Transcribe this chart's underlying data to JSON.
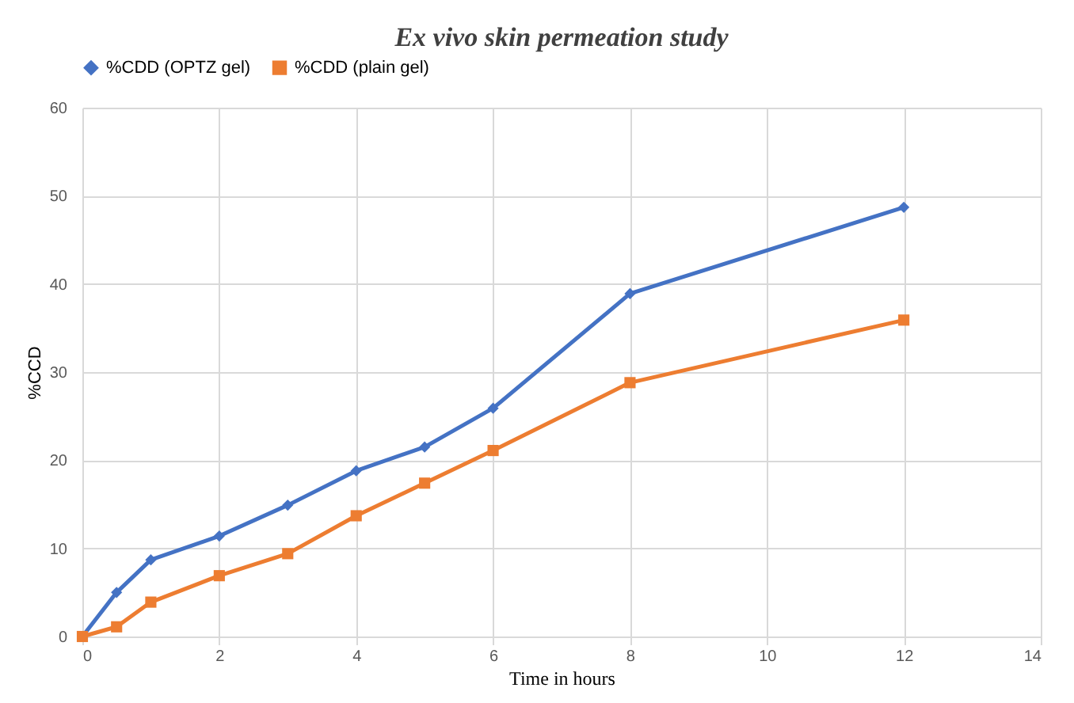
{
  "chart_data": {
    "type": "line",
    "title": "Ex vivo skin permeation study",
    "xlabel": "Time in hours",
    "ylabel": "%CCD",
    "x": [
      0,
      0.5,
      1,
      2,
      3,
      4,
      5,
      6,
      8,
      12
    ],
    "series": [
      {
        "name": "%CDD (OPTZ gel)",
        "color": "#4472c4",
        "marker": "diamond",
        "values": [
          0,
          5.0,
          8.7,
          11.4,
          14.9,
          18.8,
          21.5,
          25.9,
          38.9,
          48.7
        ]
      },
      {
        "name": "%CDD (plain gel)",
        "color": "#ed7d31",
        "marker": "square",
        "values": [
          0,
          1.1,
          3.9,
          6.9,
          9.4,
          13.7,
          17.4,
          21.1,
          28.8,
          35.9
        ]
      }
    ],
    "xlim": [
      0,
      14
    ],
    "xticks": [
      0,
      2,
      4,
      6,
      8,
      10,
      12,
      14
    ],
    "ylim": [
      0,
      60
    ],
    "yticks": [
      0,
      10,
      20,
      30,
      40,
      50,
      60
    ],
    "grid": true,
    "legend": "top",
    "line_style": "solid"
  }
}
